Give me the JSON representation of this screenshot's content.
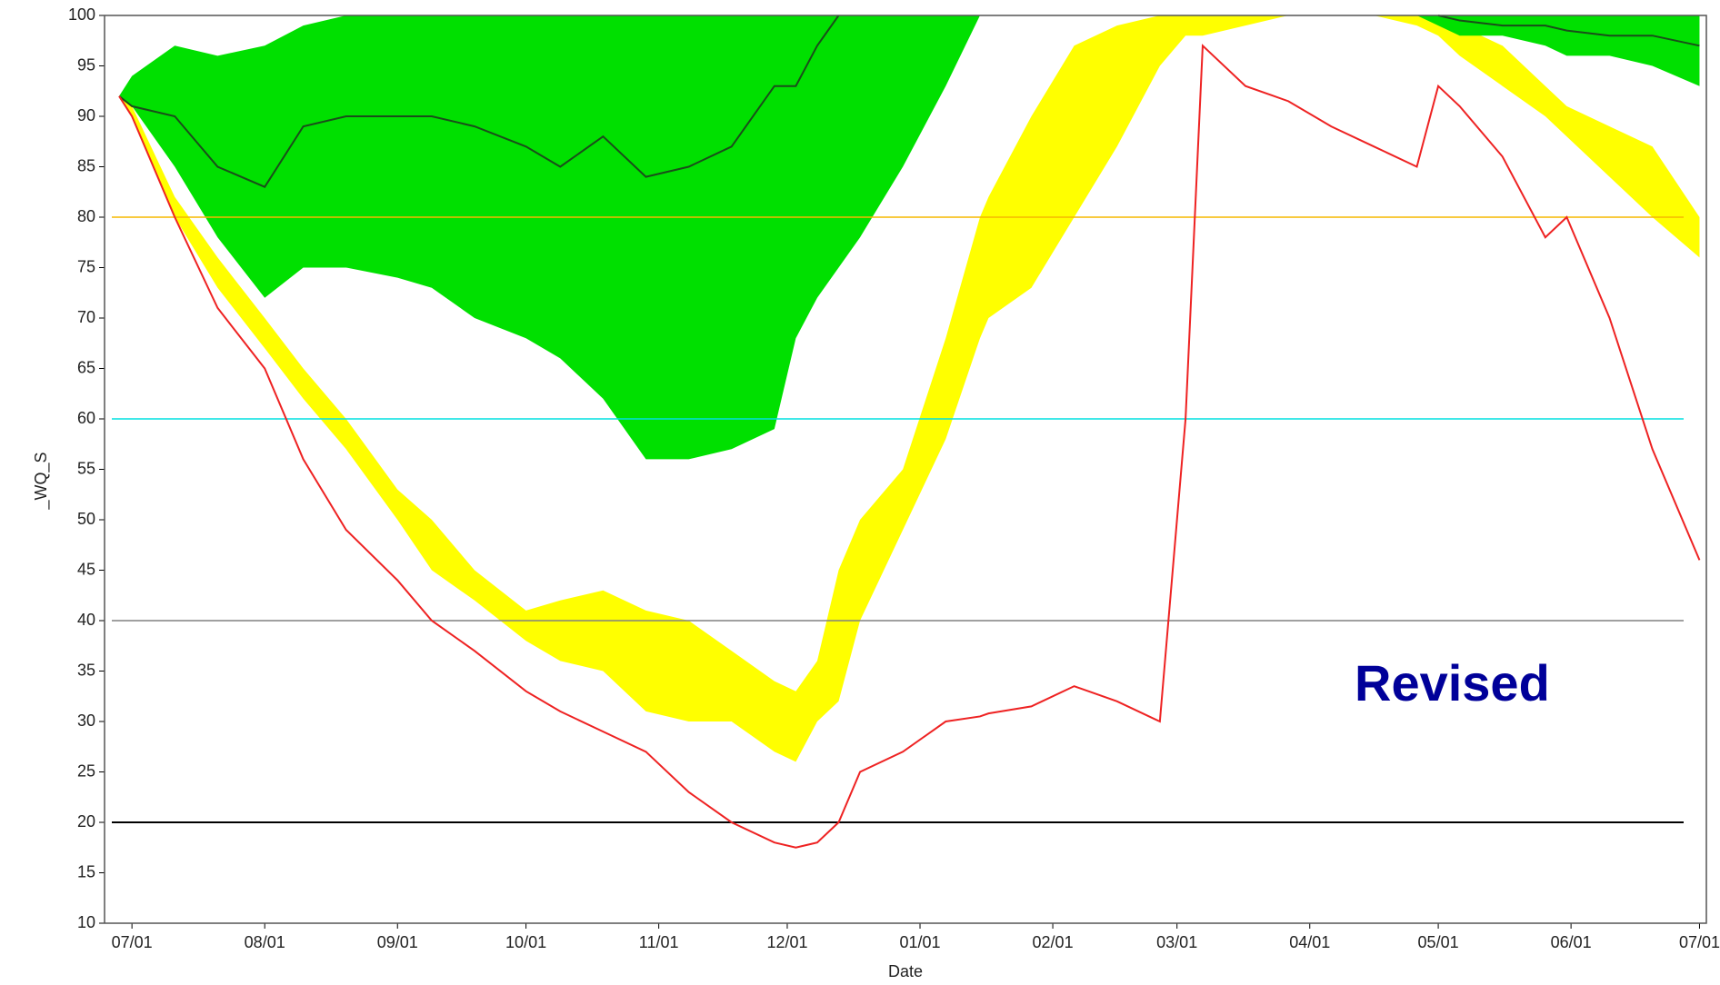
{
  "chart_data": {
    "type": "band-line",
    "x_label": "Date",
    "y_label": "_WQ_S",
    "annotation": "Revised",
    "xlim": [
      -6.4,
      367.6
    ],
    "xticks": [
      {
        "value": 0,
        "label": "07/01"
      },
      {
        "value": 31,
        "label": "08/01"
      },
      {
        "value": 62,
        "label": "09/01"
      },
      {
        "value": 92,
        "label": "10/01"
      },
      {
        "value": 123,
        "label": "11/01"
      },
      {
        "value": 153,
        "label": "12/01"
      },
      {
        "value": 184,
        "label": "01/01"
      },
      {
        "value": 215,
        "label": "02/01"
      },
      {
        "value": 244,
        "label": "03/01"
      },
      {
        "value": 275,
        "label": "04/01"
      },
      {
        "value": 305,
        "label": "05/01"
      },
      {
        "value": 336,
        "label": "06/01"
      },
      {
        "value": 366,
        "label": "07/01"
      }
    ],
    "ylim": [
      10,
      100
    ],
    "yticks": [
      10,
      15,
      20,
      25,
      30,
      35,
      40,
      45,
      50,
      55,
      60,
      65,
      70,
      75,
      80,
      85,
      90,
      95,
      100
    ],
    "x": [
      -3,
      0,
      10,
      20,
      31,
      40,
      50,
      62,
      70,
      80,
      92,
      100,
      110,
      120,
      130,
      140,
      150,
      155,
      160,
      165,
      170,
      180,
      190,
      198,
      200,
      210,
      220,
      230,
      240,
      246,
      250,
      260,
      270,
      280,
      290,
      300,
      305,
      310,
      320,
      330,
      335,
      345,
      355,
      366
    ],
    "bands": [
      {
        "color": "#ffff00",
        "lower": [
          92,
          90,
          80,
          73,
          67,
          62,
          57,
          50,
          45,
          42,
          38,
          36,
          35,
          31,
          30,
          30,
          27,
          26,
          30,
          32,
          40,
          49,
          58,
          68,
          70,
          73,
          80,
          87,
          95,
          98,
          98,
          99,
          100,
          100,
          100,
          99,
          98,
          96,
          93,
          90,
          88,
          84,
          80,
          76
        ],
        "upper": [
          92,
          91,
          82,
          76,
          70,
          65,
          60,
          53,
          50,
          45,
          41,
          42,
          43,
          41,
          40,
          37,
          34,
          33,
          36,
          45,
          50,
          55,
          68,
          80,
          82,
          90,
          97,
          99,
          100,
          100,
          100,
          100,
          100,
          100,
          100,
          100,
          100,
          99,
          97,
          93,
          91,
          89,
          87,
          80
        ]
      },
      {
        "color": "#00e000",
        "lower": [
          92,
          91,
          85,
          78,
          72,
          75,
          75,
          74,
          73,
          70,
          68,
          66,
          62,
          56,
          56,
          57,
          59,
          68,
          72,
          75,
          78,
          85,
          93,
          100,
          null,
          null,
          null,
          null,
          null,
          null,
          null,
          null,
          null,
          null,
          null,
          100,
          99,
          98,
          98,
          97,
          96,
          96,
          95,
          93
        ],
        "upper": [
          92,
          94,
          97,
          96,
          97,
          99,
          100,
          100,
          100,
          100,
          100,
          100,
          100,
          100,
          100,
          100,
          100,
          100,
          100,
          100,
          100,
          100,
          100,
          100,
          null,
          null,
          null,
          null,
          null,
          null,
          null,
          null,
          null,
          null,
          null,
          100,
          100,
          100,
          100,
          100,
          100,
          100,
          100,
          100
        ]
      }
    ],
    "ref_lines": [
      {
        "value": 80,
        "color": "#f5b800"
      },
      {
        "value": 60,
        "color": "#00e0e0"
      },
      {
        "value": 40,
        "color": "#808080"
      },
      {
        "value": 20,
        "color": "#000000"
      }
    ],
    "series": [
      {
        "color": "#1a4d1a",
        "values": [
          92,
          91,
          90,
          85,
          83,
          89,
          90,
          90,
          90,
          89,
          87,
          85,
          88,
          84,
          85,
          87,
          93,
          93,
          97,
          100,
          null,
          null,
          null,
          null,
          null,
          null,
          null,
          null,
          null,
          null,
          null,
          null,
          null,
          null,
          null,
          null,
          100,
          99.5,
          99,
          99,
          98.5,
          98,
          98,
          97
        ]
      },
      {
        "color": "#ee2222",
        "values": [
          92,
          90,
          80,
          71,
          65,
          56,
          49,
          44,
          40,
          37,
          33,
          31,
          29,
          27,
          23,
          20,
          18,
          17.5,
          18,
          20,
          25,
          27,
          30,
          30.5,
          30.8,
          31.5,
          33.5,
          32,
          30,
          60,
          97,
          93,
          91.5,
          89,
          87,
          85,
          93,
          91,
          86,
          78,
          80,
          70,
          57,
          46
        ]
      }
    ]
  }
}
